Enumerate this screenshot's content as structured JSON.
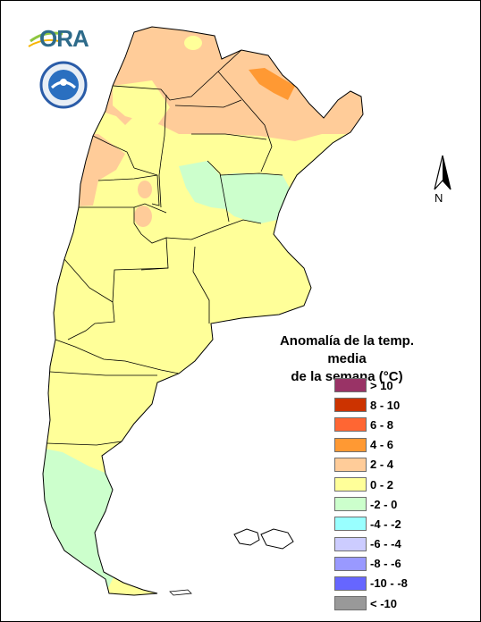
{
  "logos": {
    "ora_text": "ORA",
    "smn_text": "SERVICIO METEOROLOGICO NACIONAL · ARGENTINA · SMN"
  },
  "north_arrow": {
    "label": "N",
    "icon": "north-arrow-icon"
  },
  "legend": {
    "title_line1": "Anomalía de la temp. media",
    "title_line2": "de la semana (°C)",
    "items": [
      {
        "label": "> 10",
        "color": "#993366"
      },
      {
        "label": "8 - 10",
        "color": "#cc3300"
      },
      {
        "label": "6 - 8",
        "color": "#ff6633"
      },
      {
        "label": "4 - 6",
        "color": "#ff9933"
      },
      {
        "label": "2 - 4",
        "color": "#ffcc99"
      },
      {
        "label": "0 - 2",
        "color": "#ffff99"
      },
      {
        "label": "-2 - 0",
        "color": "#ccffcc"
      },
      {
        "label": "-4 - -2",
        "color": "#99ffff"
      },
      {
        "label": "-6 - -4",
        "color": "#ccccff"
      },
      {
        "label": "-8 - -6",
        "color": "#9999ff"
      },
      {
        "label": "-10 - -8",
        "color": "#6666ff"
      },
      {
        "label": "< -10",
        "color": "#999999"
      }
    ]
  },
  "map_colors": {
    "warm_2_4": "#ffcc99",
    "warm_4_6": "#ff9933",
    "neutral_0_2": "#ffff99",
    "cool_m2_0": "#ccffcc",
    "border": "#000000"
  }
}
